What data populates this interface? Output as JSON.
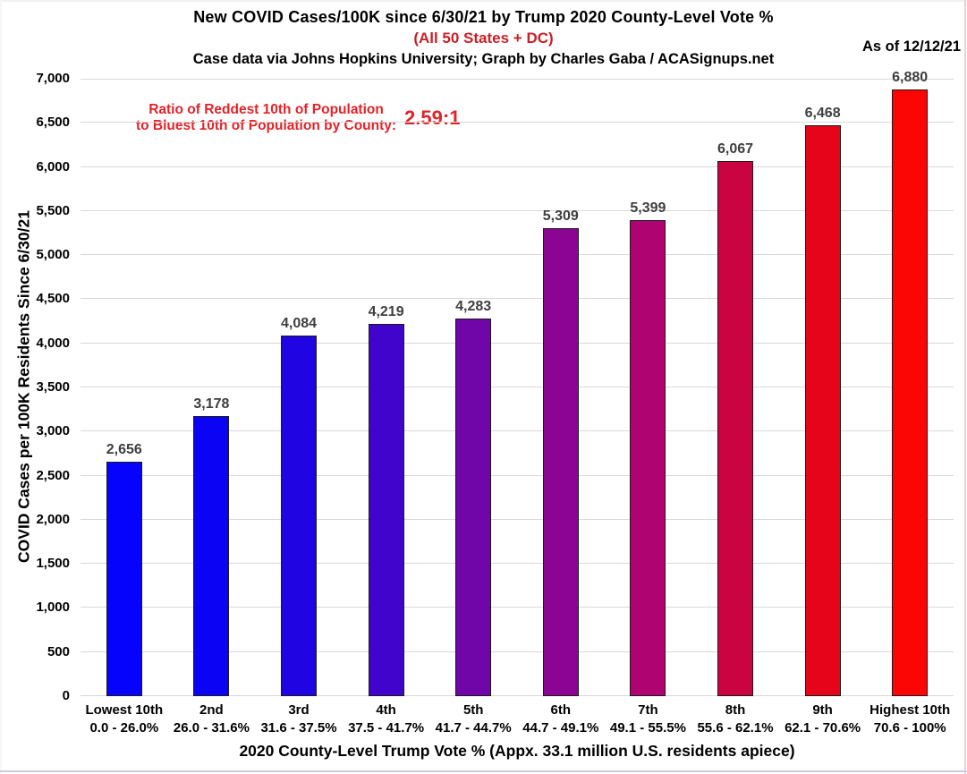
{
  "chart_data": {
    "type": "bar",
    "title": "New COVID Cases/100K since 6/30/21 by Trump 2020 County-Level Vote %",
    "subtitle": "(All 50 States + DC)",
    "credit": "Case data via Johns Hopkins University; Graph by Charles Gaba / ACASignups.net",
    "as_of": "As of 12/12/21",
    "annotation": {
      "line1": "Ratio of Reddest 10th of Population",
      "line2": "to Bluest 10th of Population by County:",
      "value": "2.59:1"
    },
    "ylabel": "COVID Cases per 100K Residents Since 6/30/21",
    "xlabel": "2020 County-Level Trump Vote % (Appx. 33.1 million U.S. residents apiece)",
    "ylim": [
      0,
      7000
    ],
    "ytick_step": 500,
    "ytick_labels": [
      "0",
      "500",
      "1,000",
      "1,500",
      "2,000",
      "2,500",
      "3,000",
      "3,500",
      "4,000",
      "4,500",
      "5,000",
      "5,500",
      "6,000",
      "6,500",
      "7,000"
    ],
    "grid": true,
    "legend": "none",
    "categories": [
      {
        "label": "Lowest 10th",
        "range": "0.0 - 26.0%"
      },
      {
        "label": "2nd",
        "range": "26.0 - 31.6%"
      },
      {
        "label": "3rd",
        "range": "31.6 - 37.5%"
      },
      {
        "label": "4th",
        "range": "37.5 - 41.7%"
      },
      {
        "label": "5th",
        "range": "41.7 - 44.7%"
      },
      {
        "label": "6th",
        "range": "44.7 - 49.1%"
      },
      {
        "label": "7th",
        "range": "49.1 - 55.5%"
      },
      {
        "label": "8th",
        "range": "55.6 - 62.1%"
      },
      {
        "label": "9th",
        "range": "62.1 - 70.6%"
      },
      {
        "label": "Highest 10th",
        "range": "70.6 - 100%"
      }
    ],
    "values": [
      2656,
      3178,
      4084,
      4219,
      4283,
      5309,
      5399,
      6067,
      6468,
      6880
    ],
    "value_labels": [
      "2,656",
      "3,178",
      "4,084",
      "4,219",
      "4,283",
      "5,309",
      "5,399",
      "6,067",
      "6,468",
      "6,880"
    ],
    "colors": {
      "title_accent": "#cb1f27",
      "annotation": "#e22328",
      "bar_label": "#3e3e3e",
      "gridline": "#d8d8d8",
      "bar_border": "#1a1a1a",
      "bars": [
        "#0503fb",
        "#0b04f4",
        "#2104e2",
        "#4104cc",
        "#7005a8",
        "#8b0493",
        "#ae0370",
        "#c90441",
        "#e6041a",
        "#fb0505"
      ]
    }
  }
}
